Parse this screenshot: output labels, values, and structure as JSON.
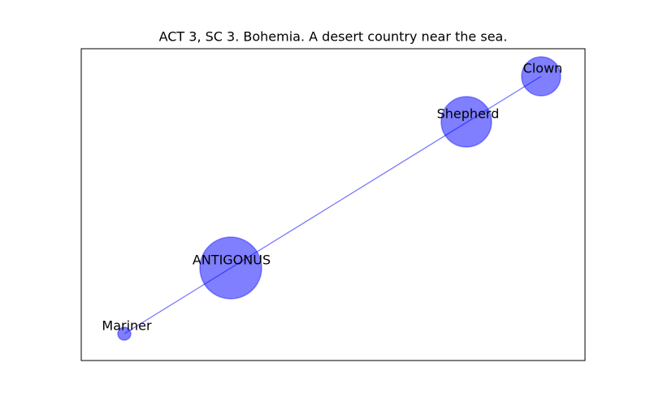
{
  "title": "ACT 3, SC 3. Bohemia. A desert country near the sea.",
  "nodes": [
    {
      "label": "Clown"
    },
    {
      "label": "Shepherd"
    },
    {
      "label": "ANTIGONUS"
    },
    {
      "label": "Mariner"
    }
  ]
}
